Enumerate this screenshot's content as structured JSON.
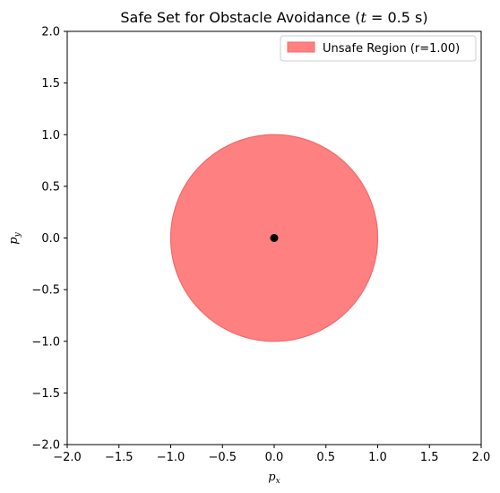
{
  "chart_data": {
    "type": "scatter",
    "title": "Safe Set for Obstacle Avoidance (t = 0.5 s)",
    "title_parts": {
      "prefix": "Safe Set for Obstacle Avoidance (",
      "var": "t",
      "middle": " = 0.5 s",
      "suffix": ")"
    },
    "xlabel": "p_x",
    "ylabel": "p_y",
    "xlabel_parts": {
      "base": "p",
      "sub": "x"
    },
    "ylabel_parts": {
      "base": "p",
      "sub": "y"
    },
    "xlim": [
      -2.0,
      2.0
    ],
    "ylim": [
      -2.0,
      2.0
    ],
    "xticks": [
      -2.0,
      -1.5,
      -1.0,
      -0.5,
      0.0,
      0.5,
      1.0,
      1.5,
      2.0
    ],
    "yticks": [
      -2.0,
      -1.5,
      -1.0,
      -0.5,
      0.0,
      0.5,
      1.0,
      1.5,
      2.0
    ],
    "xtick_labels": [
      "−2.0",
      "−1.5",
      "−1.0",
      "−0.5",
      "0.0",
      "0.5",
      "1.0",
      "1.5",
      "2.0"
    ],
    "ytick_labels": [
      "−2.0",
      "−1.5",
      "−1.0",
      "−0.5",
      "0.0",
      "0.5",
      "1.0",
      "1.5",
      "2.0"
    ],
    "grid": false,
    "legend_position": "top-right",
    "unsafe_region": {
      "shape": "circle",
      "center": [
        0.0,
        0.0
      ],
      "radius": 1.0,
      "label": "Unsafe Region (r=1.00)",
      "fill_color": "#ff8080",
      "edge_color": "#f06a6a"
    },
    "points": [
      {
        "x": 0.0,
        "y": 0.0,
        "color": "#000000"
      }
    ]
  }
}
